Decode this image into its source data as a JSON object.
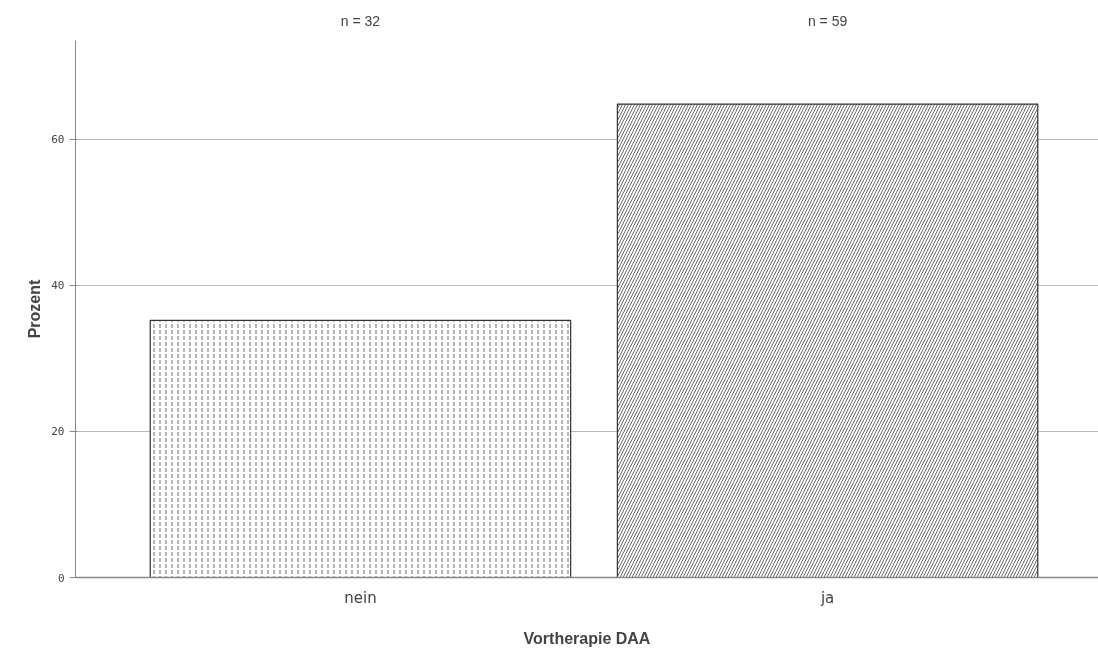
{
  "chart_data": {
    "type": "bar",
    "xlabel": "Vortherapie DAA",
    "ylabel": "Prozent",
    "categories": [
      "nein",
      "ja"
    ],
    "values": [
      35.2,
      64.8
    ],
    "colors": [
      "#ffffff",
      "#ffffff"
    ],
    "annotations": [
      "n = 32",
      "n = 59"
    ],
    "ylim": [
      0,
      73.5
    ],
    "yticks": [
      0,
      20,
      40,
      60
    ],
    "grid": "y"
  }
}
